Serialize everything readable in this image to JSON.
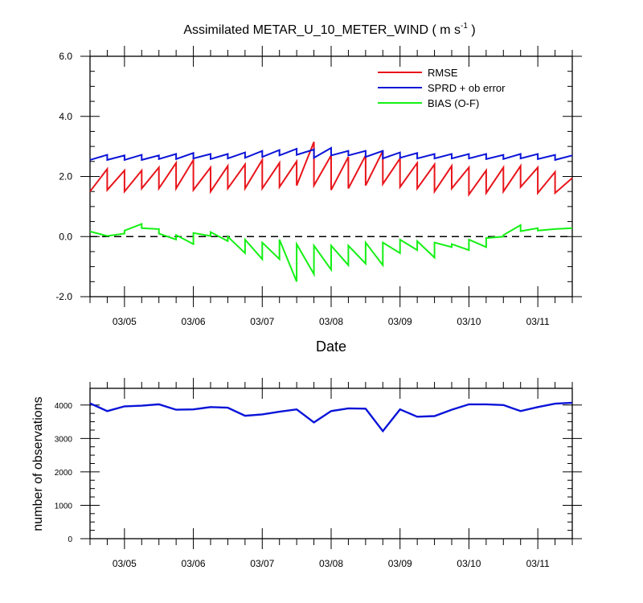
{
  "chart_data": [
    {
      "type": "line",
      "title": "Assimilated METAR_U_10_METER_WIND ( m s",
      "title_superscript": "-1",
      "title_close": " )",
      "xlabel": "Date",
      "ylabel": "",
      "ylim": [
        -2.0,
        6.0
      ],
      "yticks": [
        "-2.0",
        "0.0",
        "2.0",
        "4.0",
        "6.0"
      ],
      "ytick_values": [
        -2.0,
        0.0,
        2.0,
        4.0,
        6.0
      ],
      "xlim": [
        "03/04 12:00",
        "03/11 12:00"
      ],
      "xticks": [
        "03/05",
        "03/06",
        "03/07",
        "03/08",
        "03/09",
        "03/10",
        "03/11"
      ],
      "reference_line": {
        "y": 0.0,
        "style": "dashed"
      },
      "legend": {
        "placement": "top-right",
        "entries": [
          {
            "label": "RMSE",
            "color": "#e8151b"
          },
          {
            "label": "SPRD + ob error",
            "color": "#0a14d8"
          },
          {
            "label": "BIAS (O-F)",
            "color": "#14f014"
          }
        ]
      },
      "series": [
        {
          "name": "RMSE",
          "color": "#e8151b",
          "x": [
            "03/04 12:00",
            "03/04 12:00",
            "03/04 18:00",
            "03/04 18:00",
            "03/05 00:00",
            "03/05 00:00",
            "03/05 06:00",
            "03/05 06:00",
            "03/05 12:00",
            "03/05 12:00",
            "03/05 18:00",
            "03/05 18:00",
            "03/06 00:00",
            "03/06 00:00",
            "03/06 06:00",
            "03/06 06:00",
            "03/06 12:00",
            "03/06 12:00",
            "03/06 18:00",
            "03/06 18:00",
            "03/07 00:00",
            "03/07 00:00",
            "03/07 06:00",
            "03/07 06:00",
            "03/07 12:00",
            "03/07 12:00",
            "03/07 18:00",
            "03/07 18:00",
            "03/08 00:00",
            "03/08 00:00",
            "03/08 06:00",
            "03/08 06:00",
            "03/08 12:00",
            "03/08 12:00",
            "03/08 18:00",
            "03/08 18:00",
            "03/09 00:00",
            "03/09 00:00",
            "03/09 06:00",
            "03/09 06:00",
            "03/09 12:00",
            "03/09 12:00",
            "03/09 18:00",
            "03/09 18:00",
            "03/10 00:00",
            "03/10 00:00",
            "03/10 06:00",
            "03/10 06:00",
            "03/10 12:00",
            "03/10 12:00",
            "03/10 18:00",
            "03/10 18:00",
            "03/11 00:00",
            "03/11 00:00",
            "03/11 06:00",
            "03/11 06:00",
            "03/11 12:00"
          ],
          "y": [
            1.5,
            1.5,
            2.25,
            1.55,
            2.2,
            1.5,
            2.2,
            1.6,
            2.3,
            1.6,
            2.45,
            1.6,
            2.55,
            1.55,
            2.3,
            1.5,
            2.35,
            1.6,
            2.4,
            1.6,
            2.55,
            1.6,
            2.45,
            1.65,
            2.5,
            1.7,
            3.15,
            1.7,
            2.7,
            1.55,
            2.65,
            1.6,
            2.7,
            1.7,
            2.85,
            1.75,
            2.6,
            1.65,
            2.45,
            1.6,
            2.4,
            1.5,
            2.35,
            1.6,
            2.3,
            1.4,
            2.2,
            1.45,
            2.3,
            1.5,
            2.35,
            1.65,
            2.3,
            1.45,
            2.15,
            1.45,
            1.95
          ]
        },
        {
          "name": "SPRD + ob error",
          "color": "#0a14d8",
          "x": [
            "03/04 12:00",
            "03/04 12:00",
            "03/04 18:00",
            "03/04 18:00",
            "03/05 00:00",
            "03/05 00:00",
            "03/05 06:00",
            "03/05 06:00",
            "03/05 12:00",
            "03/05 12:00",
            "03/05 18:00",
            "03/05 18:00",
            "03/06 00:00",
            "03/06 00:00",
            "03/06 06:00",
            "03/06 06:00",
            "03/06 12:00",
            "03/06 12:00",
            "03/06 18:00",
            "03/06 18:00",
            "03/07 00:00",
            "03/07 00:00",
            "03/07 06:00",
            "03/07 06:00",
            "03/07 12:00",
            "03/07 12:00",
            "03/07 18:00",
            "03/07 18:00",
            "03/08 00:00",
            "03/08 00:00",
            "03/08 06:00",
            "03/08 06:00",
            "03/08 12:00",
            "03/08 12:00",
            "03/08 18:00",
            "03/08 18:00",
            "03/09 00:00",
            "03/09 00:00",
            "03/09 06:00",
            "03/09 06:00",
            "03/09 12:00",
            "03/09 12:00",
            "03/09 18:00",
            "03/09 18:00",
            "03/10 00:00",
            "03/10 00:00",
            "03/10 06:00",
            "03/10 06:00",
            "03/10 12:00",
            "03/10 12:00",
            "03/10 18:00",
            "03/10 18:00",
            "03/11 00:00",
            "03/11 00:00",
            "03/11 06:00",
            "03/11 06:00",
            "03/11 12:00"
          ],
          "y": [
            2.55,
            2.55,
            2.72,
            2.55,
            2.7,
            2.55,
            2.72,
            2.55,
            2.7,
            2.58,
            2.75,
            2.58,
            2.78,
            2.6,
            2.75,
            2.58,
            2.75,
            2.6,
            2.8,
            2.62,
            2.85,
            2.65,
            2.88,
            2.7,
            2.92,
            2.72,
            2.9,
            2.62,
            2.95,
            2.7,
            2.85,
            2.7,
            2.85,
            2.65,
            2.85,
            2.6,
            2.8,
            2.62,
            2.78,
            2.6,
            2.75,
            2.6,
            2.75,
            2.6,
            2.75,
            2.6,
            2.75,
            2.58,
            2.72,
            2.58,
            2.75,
            2.6,
            2.75,
            2.58,
            2.72,
            2.55,
            2.7
          ]
        },
        {
          "name": "BIAS (O-F)",
          "color": "#14f014",
          "x": [
            "03/04 12:00",
            "03/04 18:00",
            "03/05 00:00",
            "03/05 00:00",
            "03/05 06:00",
            "03/05 06:00",
            "03/05 12:00",
            "03/05 12:00",
            "03/05 18:00",
            "03/05 18:00",
            "03/06 00:00",
            "03/06 00:00",
            "03/06 06:00",
            "03/06 06:00",
            "03/06 12:00",
            "03/06 12:00",
            "03/06 18:00",
            "03/06 18:00",
            "03/07 00:00",
            "03/07 00:00",
            "03/07 06:00",
            "03/07 06:00",
            "03/07 12:00",
            "03/07 12:00",
            "03/07 18:00",
            "03/07 18:00",
            "03/08 00:00",
            "03/08 00:00",
            "03/08 06:00",
            "03/08 06:00",
            "03/08 12:00",
            "03/08 12:00",
            "03/08 18:00",
            "03/08 18:00",
            "03/09 00:00",
            "03/09 00:00",
            "03/09 06:00",
            "03/09 06:00",
            "03/09 12:00",
            "03/09 12:00",
            "03/09 18:00",
            "03/09 18:00",
            "03/10 00:00",
            "03/10 00:00",
            "03/10 06:00",
            "03/10 06:00",
            "03/10 12:00",
            "03/10 12:00",
            "03/10 18:00",
            "03/10 18:00",
            "03/11 00:00",
            "03/11 00:00",
            "03/11 06:00",
            "03/11 12:00"
          ],
          "y": [
            0.17,
            0.02,
            0.1,
            0.2,
            0.42,
            0.28,
            0.25,
            0.1,
            -0.1,
            0.05,
            -0.25,
            0.12,
            0.02,
            0.15,
            -0.15,
            0.0,
            -0.55,
            -0.1,
            -0.75,
            -0.2,
            -0.75,
            -0.1,
            -1.5,
            -0.25,
            -1.25,
            -0.3,
            -1.1,
            -0.3,
            -0.95,
            -0.3,
            -0.9,
            -0.2,
            -0.95,
            -0.2,
            -0.55,
            -0.1,
            -0.45,
            -0.15,
            -0.7,
            -0.2,
            -0.35,
            -0.25,
            -0.45,
            -0.1,
            -0.35,
            -0.05,
            0.0,
            0.05,
            0.38,
            0.18,
            0.28,
            0.2,
            0.25,
            0.28
          ]
        }
      ]
    },
    {
      "type": "line",
      "title": "",
      "xlabel": "",
      "ylabel": "number of observations",
      "ylim": [
        0,
        4500
      ],
      "yticks": [
        "0",
        "1000",
        "2000",
        "3000",
        "4000"
      ],
      "ytick_values": [
        0,
        1000,
        2000,
        3000,
        4000
      ],
      "xlim": [
        "03/04 12:00",
        "03/11 12:00"
      ],
      "xticks": [
        "03/05",
        "03/06",
        "03/07",
        "03/08",
        "03/09",
        "03/10",
        "03/11"
      ],
      "series": [
        {
          "name": "",
          "color": "#0a14d8",
          "x": [
            "03/04 12:00",
            "03/04 18:00",
            "03/05 00:00",
            "03/05 06:00",
            "03/05 12:00",
            "03/05 18:00",
            "03/06 00:00",
            "03/06 06:00",
            "03/06 12:00",
            "03/06 18:00",
            "03/07 00:00",
            "03/07 06:00",
            "03/07 12:00",
            "03/07 18:00",
            "03/08 00:00",
            "03/08 06:00",
            "03/08 12:00",
            "03/08 18:00",
            "03/09 00:00",
            "03/09 06:00",
            "03/09 12:00",
            "03/09 18:00",
            "03/10 00:00",
            "03/10 06:00",
            "03/10 12:00",
            "03/10 18:00",
            "03/11 00:00",
            "03/11 06:00",
            "03/11 12:00"
          ],
          "y": [
            4050,
            3820,
            3960,
            3980,
            4020,
            3860,
            3870,
            3940,
            3920,
            3680,
            3720,
            3800,
            3870,
            3480,
            3820,
            3900,
            3890,
            3220,
            3870,
            3650,
            3670,
            3860,
            4020,
            4020,
            4000,
            3820,
            3940,
            4040,
            4070
          ]
        }
      ]
    }
  ]
}
